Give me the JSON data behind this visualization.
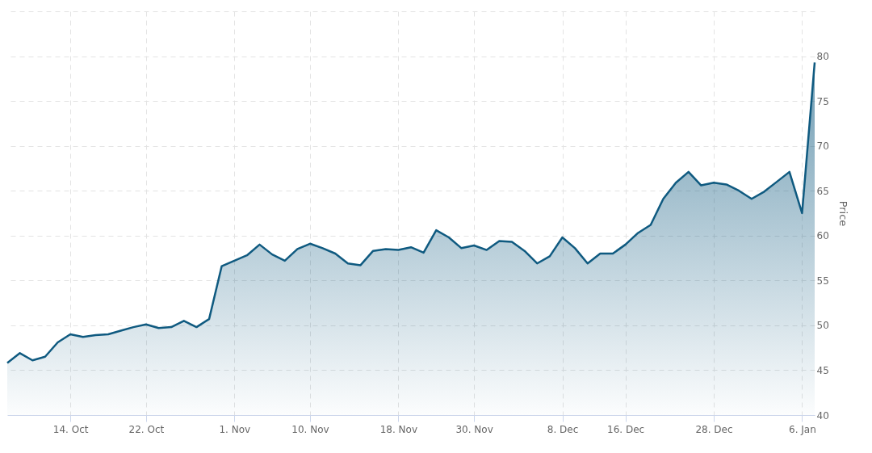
{
  "chart_data": {
    "type": "area",
    "ylabel": "Price",
    "categories": [
      null,
      null,
      null,
      null,
      null,
      "14. Oct",
      null,
      null,
      null,
      null,
      null,
      "22. Oct",
      null,
      null,
      null,
      null,
      null,
      null,
      "1. Nov",
      null,
      null,
      null,
      null,
      null,
      "10. Nov",
      null,
      null,
      null,
      null,
      null,
      null,
      "18. Nov",
      null,
      null,
      null,
      null,
      null,
      "30. Nov",
      null,
      null,
      null,
      null,
      null,
      null,
      "8. Dec",
      null,
      null,
      null,
      null,
      "16. Dec",
      null,
      null,
      null,
      null,
      null,
      null,
      "28. Dec",
      null,
      null,
      null,
      null,
      null,
      null,
      "6. Jan",
      null
    ],
    "series": [
      {
        "color": "#0f5a80",
        "values": [
          45.8,
          46.9,
          46.1,
          46.5,
          48.1,
          49.0,
          48.7,
          48.9,
          49.0,
          49.4,
          49.8,
          50.1,
          49.7,
          49.8,
          50.5,
          49.8,
          50.7,
          56.6,
          57.2,
          57.8,
          59.0,
          57.9,
          57.2,
          58.5,
          59.1,
          58.6,
          58.0,
          56.9,
          56.7,
          58.3,
          58.5,
          58.4,
          58.7,
          58.1,
          60.6,
          59.8,
          58.6,
          58.9,
          58.4,
          59.4,
          59.3,
          58.3,
          56.9,
          57.7,
          59.8,
          58.6,
          56.9,
          58.0,
          58.0,
          59.0,
          60.3,
          61.2,
          64.1,
          65.9,
          67.1,
          65.6,
          65.9,
          65.7,
          65.0,
          64.1,
          64.9,
          66.0,
          67.1,
          62.5,
          79.3
        ]
      }
    ],
    "ylim": [
      40,
      85
    ],
    "yticks": [
      40,
      45,
      50,
      55,
      60,
      65,
      70,
      75,
      80,
      {
        "value": 85,
        "label": null
      }
    ],
    "grid": true
  }
}
